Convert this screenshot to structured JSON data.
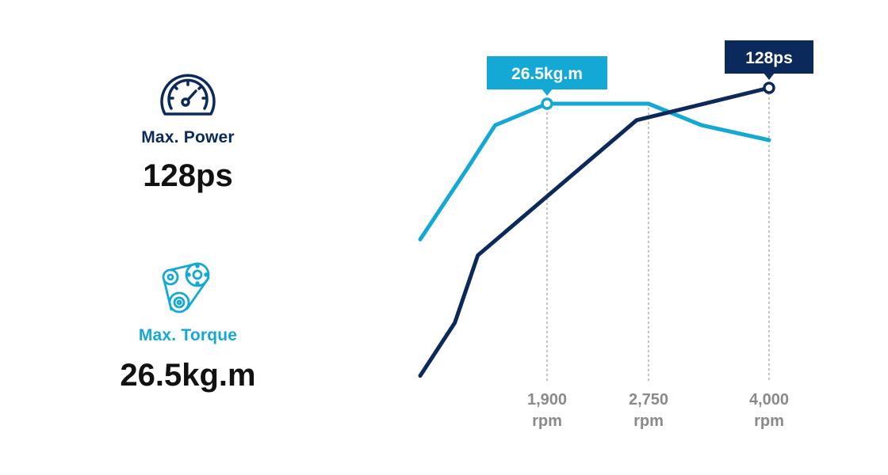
{
  "colors": {
    "power": "#0b2a5b",
    "torque": "#14a9d5",
    "guide": "#8a8a8a",
    "tick_text": "#8a8a8a",
    "value_text": "#111111"
  },
  "power": {
    "label": "Max. Power",
    "value": "128ps",
    "icon": "speedometer-icon"
  },
  "torque": {
    "label": "Max. Torque",
    "value": "26.5kg.m",
    "icon": "belt-pulley-icon"
  },
  "chart_data": {
    "type": "line",
    "xlabel": "",
    "ylabel": "",
    "x_unit": "rpm",
    "ticks": [
      {
        "value": 1900,
        "label": "1,900",
        "unit": "rpm"
      },
      {
        "value": 2750,
        "label": "2,750",
        "unit": "rpm"
      },
      {
        "value": 4000,
        "label": "4,000",
        "unit": "rpm"
      }
    ],
    "series": [
      {
        "key": "torque",
        "color": "#14a9d5",
        "points": [
          [
            800,
            0.18
          ],
          [
            1200,
            0.6
          ],
          [
            1450,
            0.87
          ],
          [
            1900,
            1.0
          ],
          [
            2750,
            1.0
          ],
          [
            3300,
            0.87
          ],
          [
            4000,
            0.78
          ]
        ],
        "marker_x": 1900,
        "callout": "26.5kg.m"
      },
      {
        "key": "power",
        "color": "#0b2a5b",
        "points": [
          [
            800,
            0.02
          ],
          [
            1100,
            0.2
          ],
          [
            1300,
            0.43
          ],
          [
            2650,
            0.89
          ],
          [
            4000,
            1.0
          ]
        ],
        "marker_x": 4000,
        "callout": "128ps"
      }
    ]
  }
}
